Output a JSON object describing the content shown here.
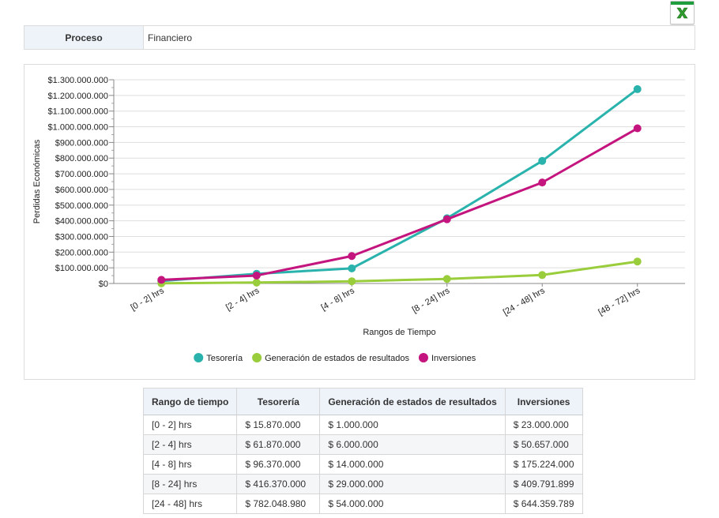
{
  "export_button": {
    "icon": "excel-icon"
  },
  "process": {
    "label": "Proceso",
    "value": "Financiero"
  },
  "colors": {
    "tesoreria": "#2ab3ad",
    "generacion": "#9acd3b",
    "inversiones": "#c4157f"
  },
  "chart_data": {
    "type": "line",
    "categories": [
      "[0 - 2] hrs",
      "[2 - 4] hrs",
      "[4 - 8] hrs",
      "[8 - 24] hrs",
      "[24 - 48] hrs",
      "[48 - 72] hrs"
    ],
    "series": [
      {
        "name": "Tesorería",
        "color": "#2ab3ad",
        "values": [
          15870000,
          61870000,
          96370000,
          416370000,
          782048980,
          1240000000
        ]
      },
      {
        "name": "Generación de estados de resultados",
        "color": "#9acd3b",
        "values": [
          1000000,
          6000000,
          14000000,
          29000000,
          54000000,
          140000000
        ]
      },
      {
        "name": "Inversiones",
        "color": "#c4157f",
        "values": [
          23000000,
          50657000,
          175224000,
          409791899,
          644359789,
          990000000
        ]
      }
    ],
    "yticks": [
      "$0",
      "$100.000.000",
      "$200.000.000",
      "$300.000.000",
      "$400.000.000",
      "$500.000.000",
      "$600.000.000",
      "$700.000.000",
      "$800.000.000",
      "$900.000.000",
      "$1.000.000.000",
      "$1.100.000.000",
      "$1.200.000.000",
      "$1.300.000.000"
    ],
    "xlabel": "Rangos de Tiempo",
    "ylabel": "Perdidas Económicas",
    "ylim": [
      0,
      1300000000
    ],
    "grid": true,
    "legend": "bottom-center"
  },
  "table": {
    "headers": [
      "Rango de tiempo",
      "Tesorería",
      "Generación de estados de resultados",
      "Inversiones"
    ],
    "rows": [
      [
        "[0 - 2] hrs",
        "$ 15.870.000",
        "$ 1.000.000",
        "$ 23.000.000"
      ],
      [
        "[2 - 4] hrs",
        "$ 61.870.000",
        "$ 6.000.000",
        "$ 50.657.000"
      ],
      [
        "[4 - 8] hrs",
        "$ 96.370.000",
        "$ 14.000.000",
        "$ 175.224.000"
      ],
      [
        "[8 - 24] hrs",
        "$ 416.370.000",
        "$ 29.000.000",
        "$ 409.791.899"
      ],
      [
        "[24 - 48] hrs",
        "$ 782.048.980",
        "$ 54.000.000",
        "$ 644.359.789"
      ]
    ]
  }
}
